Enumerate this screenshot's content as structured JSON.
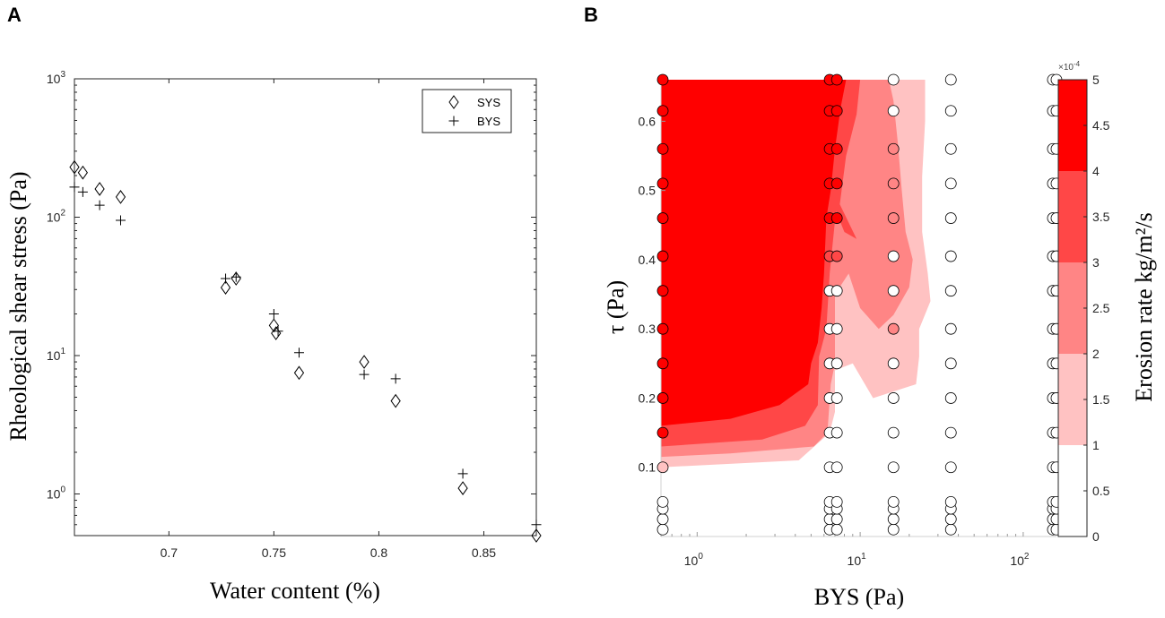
{
  "chart_data": [
    {
      "panel": "A",
      "type": "scatter",
      "xlabel": "Water content (%)",
      "ylabel": "Rheological shear stress (Pa)",
      "xlim": [
        0.655,
        0.875
      ],
      "ylim": [
        0.5,
        1000
      ],
      "yscale": "log",
      "x_ticks": [
        0.7,
        0.75,
        0.8,
        0.85
      ],
      "x_tick_labels": [
        "0.7",
        "0.75",
        "0.8",
        "0.85"
      ],
      "y_ticks": [
        1,
        10,
        100,
        1000
      ],
      "y_tick_labels": [
        "10",
        "10",
        "10",
        "10"
      ],
      "y_tick_exponents": [
        "0",
        "1",
        "2",
        "3"
      ],
      "grid": false,
      "legend_position": "top-right",
      "series": [
        {
          "name": "SYS",
          "marker": "diamond",
          "x": [
            0.655,
            0.659,
            0.667,
            0.677,
            0.727,
            0.732,
            0.75,
            0.751,
            0.762,
            0.793,
            0.808,
            0.84,
            0.875
          ],
          "y": [
            230,
            210,
            160,
            140,
            31,
            36,
            16.5,
            14.5,
            7.5,
            9.0,
            4.7,
            1.1,
            0.5
          ]
        },
        {
          "name": "BYS",
          "marker": "plus",
          "x": [
            0.655,
            0.659,
            0.667,
            0.677,
            0.727,
            0.732,
            0.75,
            0.752,
            0.762,
            0.793,
            0.808,
            0.84,
            0.875
          ],
          "y": [
            165,
            152,
            122,
            95,
            36,
            37,
            20,
            15,
            10.5,
            7.3,
            6.8,
            1.4,
            0.6
          ]
        }
      ]
    },
    {
      "panel": "B",
      "type": "contour",
      "xlabel": "BYS (Pa)",
      "ylabel": "τ (Pa)",
      "xscale": "log",
      "xlim": [
        0.6,
        160
      ],
      "ylim": [
        0,
        0.66
      ],
      "x_ticks": [
        1,
        10,
        100
      ],
      "x_tick_labels": [
        "10",
        "10",
        "10"
      ],
      "x_tick_exponents": [
        "0",
        "1",
        "2"
      ],
      "y_ticks": [
        0.1,
        0.2,
        0.3,
        0.4,
        0.5,
        0.6
      ],
      "y_tick_labels": [
        "0.1",
        "0.2",
        "0.3",
        "0.4",
        "0.5",
        "0.6"
      ],
      "sample_x": [
        0.6,
        6.5,
        7.2,
        16,
        36,
        152,
        160
      ],
      "sample_y": [
        0.01,
        0.025,
        0.04,
        0.05,
        0.1,
        0.15,
        0.2,
        0.25,
        0.3,
        0.355,
        0.405,
        0.46,
        0.51,
        0.56,
        0.615,
        0.66
      ],
      "contour_levels": [
        1.0,
        2.0,
        3.0,
        4.0,
        5.0
      ],
      "level_colors": [
        "#ffffff",
        "#ffc2c2",
        "#ff8585",
        "#ff4747",
        "#ff0000"
      ],
      "colorbar": {
        "label": "Erosion rate kg/m²/s",
        "multiplier": "×10",
        "multiplier_exponent": "-4",
        "ticks": [
          "0",
          "0.5",
          "1",
          "1.5",
          "2",
          "2.5",
          "3",
          "3.5",
          "4",
          "4.5",
          "5"
        ],
        "range": [
          0,
          5
        ]
      },
      "colors": {
        "white": "#ffffff",
        "pale": "#ffc2c2",
        "light": "#ff8585",
        "medium": "#ff4747",
        "red": "#ff0000"
      }
    }
  ],
  "panel_letters": {
    "a": "A",
    "b": "B"
  }
}
